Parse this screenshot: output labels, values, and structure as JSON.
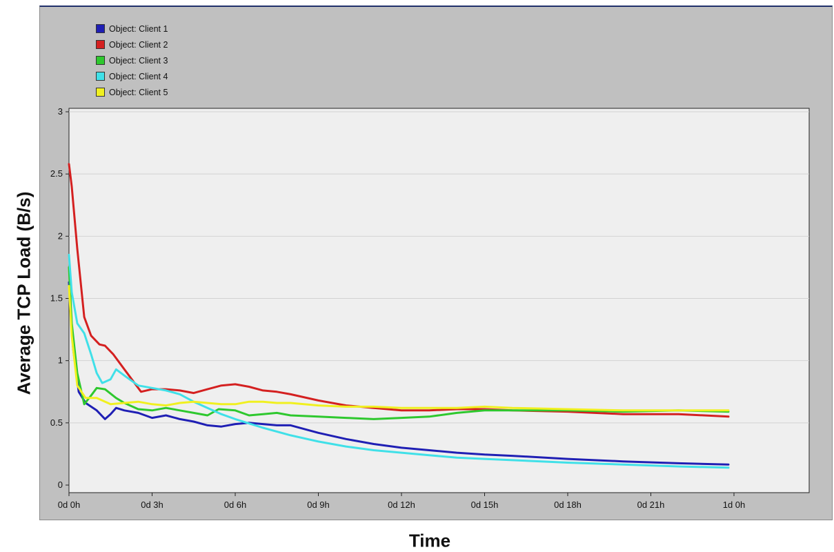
{
  "chart_data": {
    "type": "line",
    "xlabel": "Time",
    "ylabel": "Average  TCP Load (B/s)",
    "ylim": [
      0,
      3
    ],
    "yticks": [
      "0",
      "0.5",
      "1",
      "1.5",
      "2",
      "2.5",
      "3"
    ],
    "xlim": [
      0,
      24
    ],
    "xticks": [
      "0d 0h",
      "0d 3h",
      "0d 6h",
      "0d 9h",
      "0d 12h",
      "0d 15h",
      "0d 18h",
      "0d 21h",
      "1d 0h"
    ],
    "grid": "horizontal",
    "legend_position": "top-left",
    "series": [
      {
        "name": "Object: Client 1",
        "color": "#1f1fb4",
        "x": [
          0,
          0.15,
          0.35,
          0.6,
          1.0,
          1.3,
          1.5,
          1.7,
          2.0,
          2.5,
          3.0,
          3.5,
          4.0,
          4.5,
          5.0,
          5.5,
          6.0,
          6.5,
          7.0,
          7.5,
          8.0,
          9.0,
          10.0,
          11.0,
          12.0,
          13.0,
          14.0,
          15.0,
          16.0,
          18.0,
          20.0,
          22.0,
          23.8
        ],
        "values": [
          1.63,
          1.1,
          0.75,
          0.66,
          0.6,
          0.53,
          0.57,
          0.62,
          0.6,
          0.58,
          0.54,
          0.56,
          0.53,
          0.51,
          0.48,
          0.47,
          0.49,
          0.5,
          0.49,
          0.48,
          0.48,
          0.42,
          0.37,
          0.33,
          0.3,
          0.28,
          0.26,
          0.245,
          0.235,
          0.21,
          0.19,
          0.175,
          0.165
        ]
      },
      {
        "name": "Object: Client 2",
        "color": "#d42020",
        "x": [
          0,
          0.1,
          0.3,
          0.55,
          0.8,
          1.1,
          1.3,
          1.6,
          2.0,
          2.5,
          2.6,
          3.0,
          3.5,
          4.0,
          4.5,
          5.0,
          5.5,
          6.0,
          6.5,
          7.0,
          7.5,
          8.0,
          9.0,
          10.0,
          11.0,
          12.0,
          13.0,
          14.0,
          15.0,
          16.0,
          18.0,
          20.0,
          22.0,
          23.8
        ],
        "values": [
          2.58,
          2.4,
          1.9,
          1.35,
          1.2,
          1.13,
          1.12,
          1.05,
          0.93,
          0.78,
          0.75,
          0.77,
          0.77,
          0.76,
          0.74,
          0.77,
          0.8,
          0.81,
          0.79,
          0.76,
          0.75,
          0.73,
          0.68,
          0.64,
          0.62,
          0.6,
          0.6,
          0.61,
          0.61,
          0.6,
          0.59,
          0.57,
          0.57,
          0.55
        ]
      },
      {
        "name": "Object: Client 3",
        "color": "#2ec82e",
        "x": [
          0,
          0.1,
          0.3,
          0.55,
          0.8,
          1.0,
          1.3,
          1.7,
          2.0,
          2.5,
          3.0,
          3.5,
          4.0,
          4.5,
          5.0,
          5.4,
          6.0,
          6.5,
          7.0,
          7.5,
          8.0,
          9.0,
          10.0,
          11.0,
          12.0,
          13.0,
          14.0,
          15.0,
          16.0,
          18.0,
          20.0,
          22.0,
          23.8
        ],
        "values": [
          1.75,
          1.3,
          0.9,
          0.65,
          0.72,
          0.78,
          0.77,
          0.7,
          0.66,
          0.61,
          0.6,
          0.62,
          0.6,
          0.58,
          0.56,
          0.61,
          0.6,
          0.56,
          0.57,
          0.58,
          0.56,
          0.55,
          0.54,
          0.53,
          0.54,
          0.55,
          0.58,
          0.6,
          0.6,
          0.6,
          0.59,
          0.6,
          0.59
        ]
      },
      {
        "name": "Object: Client 4",
        "color": "#40e0e8",
        "x": [
          0,
          0.1,
          0.3,
          0.55,
          0.8,
          1.0,
          1.2,
          1.5,
          1.7,
          2.0,
          2.5,
          3.0,
          3.5,
          4.0,
          4.5,
          5.0,
          5.5,
          6.0,
          7.0,
          8.0,
          9.0,
          10.0,
          11.0,
          12.0,
          13.0,
          14.0,
          15.0,
          16.0,
          18.0,
          20.0,
          22.0,
          23.8
        ],
        "values": [
          1.85,
          1.55,
          1.3,
          1.22,
          1.05,
          0.9,
          0.82,
          0.85,
          0.93,
          0.88,
          0.8,
          0.78,
          0.76,
          0.73,
          0.67,
          0.62,
          0.57,
          0.53,
          0.46,
          0.4,
          0.35,
          0.31,
          0.28,
          0.26,
          0.24,
          0.22,
          0.21,
          0.2,
          0.18,
          0.165,
          0.15,
          0.14
        ]
      },
      {
        "name": "Object: Client 5",
        "color": "#f0f020",
        "x": [
          0,
          0.1,
          0.3,
          0.6,
          1.0,
          1.5,
          2.0,
          2.5,
          3.0,
          3.5,
          4.0,
          4.5,
          5.0,
          5.5,
          6.0,
          6.5,
          7.0,
          7.5,
          8.0,
          9.0,
          10.0,
          11.0,
          12.0,
          13.0,
          14.0,
          15.0,
          16.0,
          18.0,
          20.0,
          22.0,
          23.8
        ],
        "values": [
          1.6,
          1.2,
          0.8,
          0.7,
          0.7,
          0.65,
          0.66,
          0.67,
          0.65,
          0.64,
          0.66,
          0.67,
          0.66,
          0.65,
          0.65,
          0.67,
          0.67,
          0.66,
          0.66,
          0.64,
          0.63,
          0.63,
          0.62,
          0.62,
          0.62,
          0.63,
          0.62,
          0.61,
          0.6,
          0.6,
          0.6
        ]
      }
    ]
  }
}
